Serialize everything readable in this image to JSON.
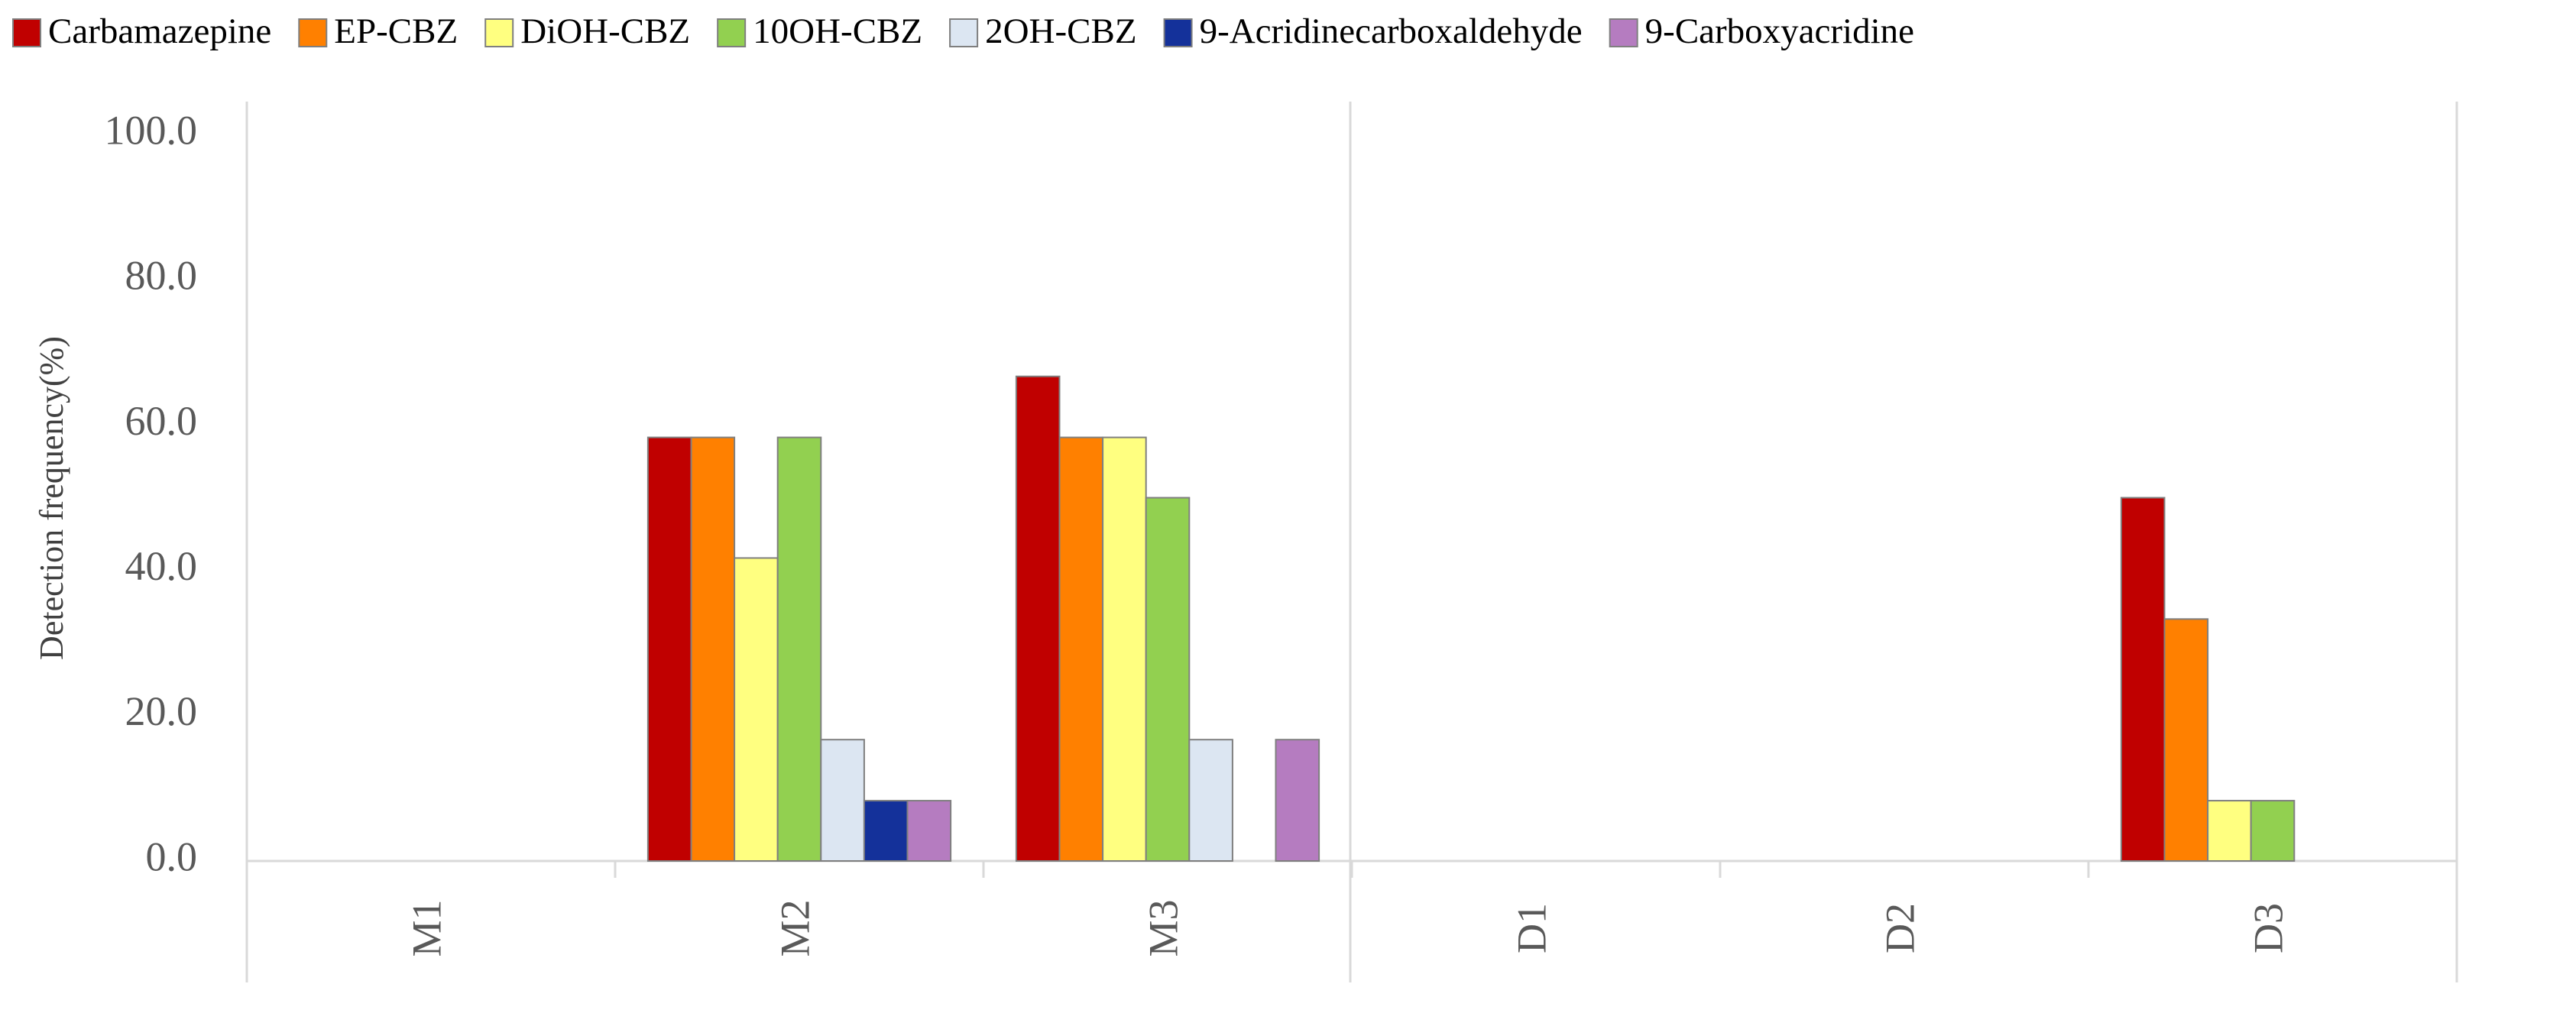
{
  "chart_data": {
    "type": "bar",
    "categories": [
      "M1",
      "M2",
      "M3",
      "D1",
      "D2",
      "D3"
    ],
    "series": [
      {
        "name": "Carbamazepine",
        "color": "#c00000",
        "values": [
          0,
          58.3,
          66.7,
          0,
          0,
          50.0
        ]
      },
      {
        "name": "EP-CBZ",
        "color": "#ff8000",
        "values": [
          0,
          58.3,
          58.3,
          0,
          0,
          33.3
        ]
      },
      {
        "name": "DiOH-CBZ",
        "color": "#ffff80",
        "values": [
          0,
          41.7,
          58.3,
          0,
          0,
          8.3
        ]
      },
      {
        "name": "10OH-CBZ",
        "color": "#92d050",
        "values": [
          0,
          58.3,
          50.0,
          0,
          0,
          8.3
        ]
      },
      {
        "name": "2OH-CBZ",
        "color": "#dce6f2",
        "values": [
          0,
          16.7,
          16.7,
          0,
          0,
          0
        ]
      },
      {
        "name": "9-Acridinecarboxaldehyde",
        "color": "#14319a",
        "values": [
          0,
          8.3,
          0,
          0,
          0,
          0
        ]
      },
      {
        "name": "9-Carboxyacridine",
        "color": "#b57cc0",
        "values": [
          0,
          8.3,
          16.7,
          0,
          0,
          0
        ]
      }
    ],
    "y_label": "Detection frequency(%)",
    "ylim": [
      0,
      100
    ],
    "yticks": [
      {
        "value": 0,
        "label": "0.0"
      },
      {
        "value": 20,
        "label": "20.0"
      },
      {
        "value": 40,
        "label": "40.0"
      },
      {
        "value": 60,
        "label": "60.0"
      },
      {
        "value": 80,
        "label": "80.0"
      },
      {
        "value": 100,
        "label": "100.0"
      }
    ],
    "legend": "top",
    "grid": false
  }
}
